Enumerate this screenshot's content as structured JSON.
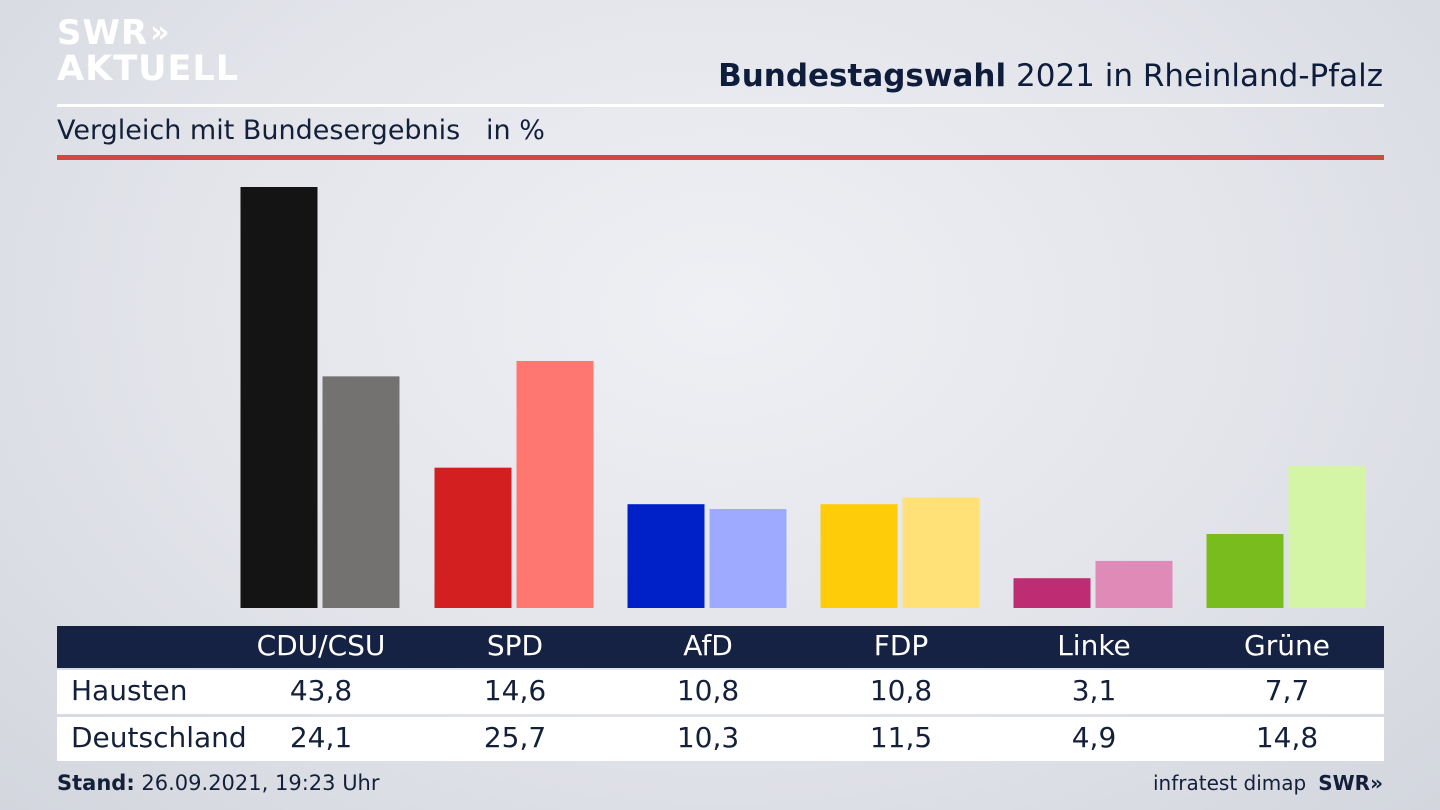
{
  "brand": {
    "logo_top": "SWR",
    "logo_arrows": "»",
    "logo_bottom": "AKTUELL"
  },
  "header": {
    "title_bold": "Bundestagswahl",
    "title_rest": "2021 in Rheinland-Pfalz",
    "subtitle": "Vergleich mit Bundesergebnis   in %"
  },
  "chart_data": {
    "type": "bar",
    "title": "Bundestagswahl 2021 in Rheinland-Pfalz",
    "subtitle": "Vergleich mit Bundesergebnis",
    "unit": "in %",
    "categories": [
      "CDU/CSU",
      "SPD",
      "AfD",
      "FDP",
      "Linke",
      "Grüne"
    ],
    "series": [
      {
        "name": "Hausten",
        "values": [
          43.8,
          14.6,
          10.8,
          10.8,
          3.1,
          7.7
        ],
        "colors": [
          "#141414",
          "#d31f20",
          "#0021c8",
          "#ffcc0a",
          "#be2d73",
          "#79bc1e"
        ]
      },
      {
        "name": "Deutschland",
        "values": [
          24.1,
          25.7,
          10.3,
          11.5,
          4.9,
          14.8
        ],
        "colors": [
          "#747270",
          "#ff7770",
          "#9eaaff",
          "#ffe178",
          "#e08ab8",
          "#d4f5a6"
        ]
      }
    ],
    "ylim": [
      0,
      43.8
    ]
  },
  "table": {
    "headers": [
      "CDU/CSU",
      "SPD",
      "AfD",
      "FDP",
      "Linke",
      "Grüne"
    ],
    "rows": [
      {
        "label": "Hausten",
        "values": [
          "43,8",
          "14,6",
          "10,8",
          "10,8",
          "3,1",
          "7,7"
        ]
      },
      {
        "label": "Deutschland",
        "values": [
          "24,1",
          "25,7",
          "10,3",
          "11,5",
          "4,9",
          "14,8"
        ]
      }
    ]
  },
  "footer": {
    "stand_label": "Stand:",
    "stand_value": "26.09.2021, 19:23 Uhr",
    "source": "infratest dimap",
    "broadcaster": "SWR»"
  }
}
